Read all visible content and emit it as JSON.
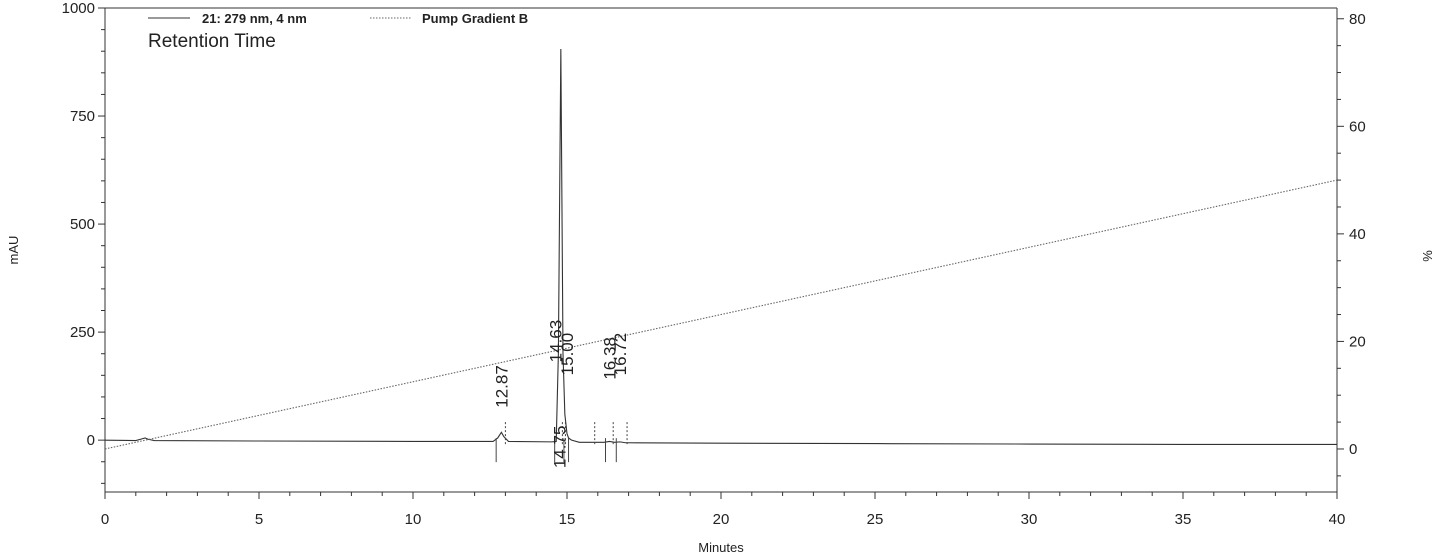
{
  "chart_data": {
    "type": "line",
    "annotation": "Retention Time",
    "xlabel": "Minutes",
    "ylabel_left": "mAU",
    "ylabel_right": "%",
    "xlim": [
      0,
      40
    ],
    "ylim_left": [
      -120,
      1000
    ],
    "ylim_right": [
      -8,
      82
    ],
    "x_ticks": [
      0,
      5,
      10,
      15,
      20,
      25,
      30,
      35,
      40
    ],
    "y_left_ticks": [
      0,
      250,
      500,
      750,
      1000
    ],
    "y_right_ticks": [
      0,
      20,
      40,
      60,
      80
    ],
    "grid": false,
    "legend_position": "top-left",
    "series": [
      {
        "name": "21: 279 nm, 4 nm",
        "axis": "left",
        "color": "#333333",
        "style": "solid",
        "x": [
          0,
          1.0,
          1.2,
          1.3,
          1.4,
          1.6,
          5,
          10,
          12.6,
          12.75,
          12.87,
          12.95,
          13.1,
          14.5,
          14.65,
          14.72,
          14.8,
          14.87,
          14.93,
          15.0,
          15.05,
          15.15,
          15.4,
          16.2,
          16.38,
          16.55,
          16.72,
          16.9,
          20,
          25,
          30,
          35,
          40
        ],
        "y": [
          0,
          -1,
          3,
          5,
          2,
          -1,
          -2,
          -3,
          -3,
          5,
          18,
          8,
          -3,
          -4,
          -3,
          200,
          905,
          200,
          60,
          15,
          5,
          0,
          -5,
          -5,
          -3,
          -5,
          -4,
          -6,
          -7,
          -8,
          -9,
          -10,
          -10
        ]
      },
      {
        "name": "Pump Gradient B",
        "axis": "right",
        "color": "#666666",
        "style": "dotted",
        "x": [
          0,
          40
        ],
        "y": [
          0,
          50
        ]
      }
    ],
    "peaks": [
      {
        "rt": "12.87",
        "x": 12.87,
        "start": 12.7,
        "end": 13.0,
        "label_y": 75,
        "label_pos": "above"
      },
      {
        "rt": "14.75",
        "x": 14.75,
        "start": 14.6,
        "end": 14.85,
        "label_y": 0,
        "label_pos": "below"
      },
      {
        "rt": "14.63",
        "x": 14.63,
        "start": 14.9,
        "end": 14.95,
        "label_y": 180,
        "label_pos": "above"
      },
      {
        "rt": "15.00",
        "x": 15.0,
        "start": 15.05,
        "end": 15.9,
        "label_y": 150,
        "label_pos": "above"
      },
      {
        "rt": "16.38",
        "x": 16.38,
        "start": 16.25,
        "end": 16.5,
        "label_y": 140,
        "label_pos": "above"
      },
      {
        "rt": "16.72",
        "x": 16.72,
        "start": 16.6,
        "end": 16.95,
        "label_y": 150,
        "label_pos": "above"
      }
    ]
  }
}
